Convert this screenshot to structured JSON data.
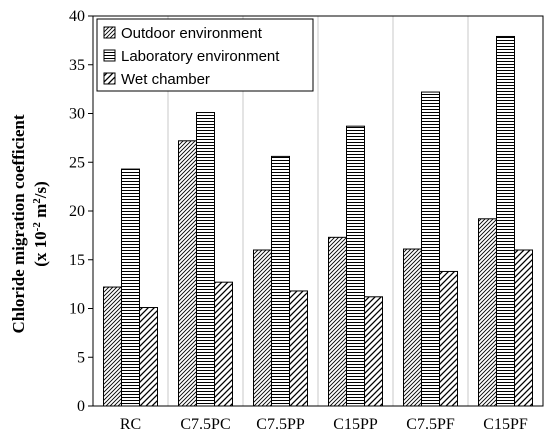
{
  "chart_data": {
    "type": "bar",
    "categories": [
      "RC",
      "C7.5PC",
      "C7.5PP",
      "C15PP",
      "C7.5PF",
      "C15PF"
    ],
    "series": [
      {
        "name": "Outdoor environment",
        "values": [
          12.2,
          27.2,
          16.0,
          17.3,
          16.1,
          19.2
        ],
        "pattern": "diagonal-dense"
      },
      {
        "name": "Laboratory environment",
        "values": [
          24.3,
          30.1,
          25.6,
          28.7,
          32.2,
          37.9
        ],
        "pattern": "horizontal-lines"
      },
      {
        "name": "Wet chamber",
        "values": [
          10.1,
          12.7,
          11.8,
          11.2,
          13.8,
          16.0
        ],
        "pattern": "diagonal-wide"
      }
    ],
    "ylabel_line1": "Chloride migration coefficient",
    "ylabel_line2": "(x 10",
    "ylabel_sup1": "-2",
    "ylabel_mid": " m",
    "ylabel_sup2": "2",
    "ylabel_end": "/s)",
    "ylim": [
      0,
      40
    ],
    "yticks": [
      0,
      5,
      10,
      15,
      20,
      25,
      30,
      35,
      40
    ],
    "grid": "vertical lines between categories",
    "legend_position": "top-left"
  }
}
